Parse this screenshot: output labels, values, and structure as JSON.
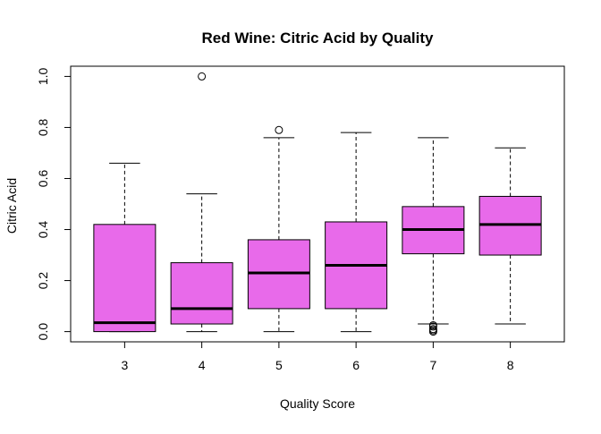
{
  "chart_data": {
    "type": "boxplot",
    "title": "Red Wine: Citric Acid by Quality",
    "xlabel": "Quality Score",
    "ylabel": "Citric Acid",
    "ylim": [
      -0.04,
      1.04
    ],
    "yticks": [
      "0.0",
      "0.2",
      "0.4",
      "0.6",
      "0.8",
      "1.0"
    ],
    "grid": false,
    "legend": "none",
    "box_color": "#E86AEA",
    "categories": [
      "3",
      "4",
      "5",
      "6",
      "7",
      "8"
    ],
    "boxes": [
      {
        "category": "3",
        "whisker_low": 0.0,
        "q1": 0.0,
        "median": 0.035,
        "q3": 0.42,
        "whisker_high": 0.66,
        "outliers": []
      },
      {
        "category": "4",
        "whisker_low": 0.0,
        "q1": 0.03,
        "median": 0.09,
        "q3": 0.27,
        "whisker_high": 0.54,
        "outliers": [
          1.0
        ]
      },
      {
        "category": "5",
        "whisker_low": 0.0,
        "q1": 0.09,
        "median": 0.23,
        "q3": 0.36,
        "whisker_high": 0.76,
        "outliers": [
          0.79
        ]
      },
      {
        "category": "6",
        "whisker_low": 0.0,
        "q1": 0.09,
        "median": 0.26,
        "q3": 0.43,
        "whisker_high": 0.78,
        "outliers": []
      },
      {
        "category": "7",
        "whisker_low": 0.03,
        "q1": 0.305,
        "median": 0.4,
        "q3": 0.49,
        "whisker_high": 0.76,
        "outliers": [
          0.0,
          0.005,
          0.01,
          0.02,
          0.025
        ]
      },
      {
        "category": "8",
        "whisker_low": 0.03,
        "q1": 0.3,
        "median": 0.42,
        "q3": 0.53,
        "whisker_high": 0.72,
        "outliers": []
      }
    ]
  }
}
